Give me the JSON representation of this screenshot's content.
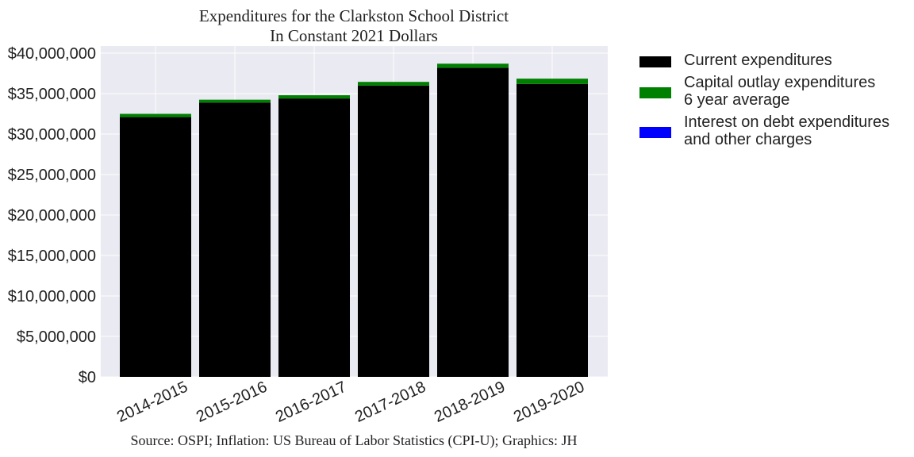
{
  "chart_data": {
    "type": "bar",
    "stacked": true,
    "title": "Expenditures for the Clarkston School District",
    "subtitle": "In Constant 2021 Dollars",
    "source": "Source: OSPI; Inflation: US Bureau of Labor Statistics (CPI-U); Graphics: JH",
    "categories": [
      "2014-2015",
      "2015-2016",
      "2016-2017",
      "2017-2018",
      "2018-2019",
      "2019-2020"
    ],
    "series": [
      {
        "name": "Current expenditures",
        "color": "#000000",
        "values": [
          32100000,
          33900000,
          34400000,
          36000000,
          38200000,
          36200000
        ]
      },
      {
        "name": "Capital outlay expenditures\n6 year average",
        "color": "#008000",
        "values": [
          400000,
          350000,
          400000,
          450000,
          500000,
          650000
        ]
      },
      {
        "name": "Interest on debt expenditures\nand other charges",
        "color": "#0000ff",
        "values": [
          0,
          0,
          0,
          0,
          0,
          0
        ]
      }
    ],
    "ylim": [
      0,
      40000000
    ],
    "yticks": [
      0,
      5000000,
      10000000,
      15000000,
      20000000,
      25000000,
      30000000,
      35000000,
      40000000
    ],
    "ytick_labels": [
      "$0",
      "$5,000,000",
      "$10,000,000",
      "$15,000,000",
      "$20,000,000",
      "$25,000,000",
      "$30,000,000",
      "$35,000,000",
      "$40,000,000"
    ],
    "grid": true,
    "legend_position": "outside-right"
  }
}
